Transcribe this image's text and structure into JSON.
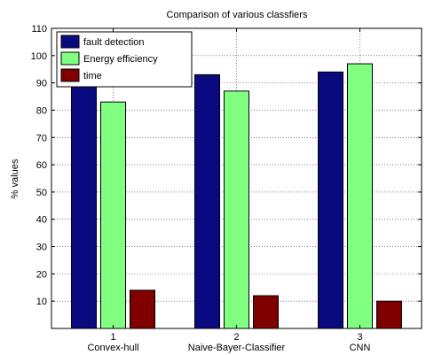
{
  "chart_data": {
    "type": "bar",
    "title": "Comparison of various classfiers",
    "ylabel": "% values",
    "xlabel": "",
    "ylim": [
      0,
      110
    ],
    "yticks": [
      10,
      20,
      30,
      40,
      50,
      60,
      70,
      80,
      90,
      100,
      110
    ],
    "categories": [
      "1",
      "2",
      "3"
    ],
    "category_names": [
      "Convex-hull",
      "Naive-Bayer-Classifier",
      "CNN"
    ],
    "series": [
      {
        "name": "fault detection",
        "color": "#0a0a80",
        "values": [
          90,
          93,
          94
        ]
      },
      {
        "name": "Energy efficiency",
        "color": "#80ff80",
        "values": [
          83,
          87,
          97
        ]
      },
      {
        "name": "time",
        "color": "#800000",
        "values": [
          14,
          12,
          10
        ]
      }
    ],
    "grid": true,
    "legend_position": "top-left"
  }
}
